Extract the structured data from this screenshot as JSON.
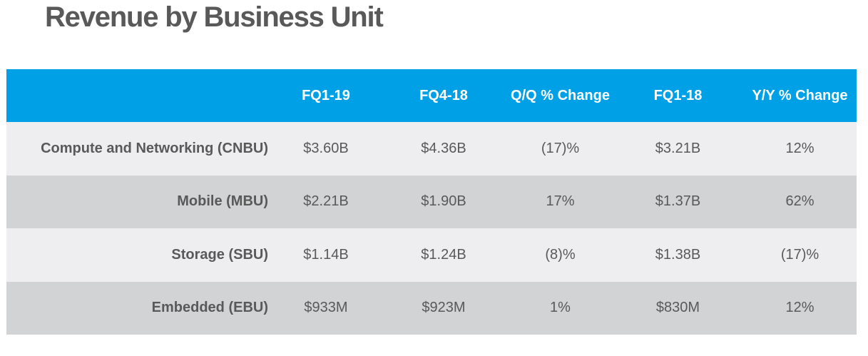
{
  "title": "Revenue by Business Unit",
  "table": {
    "header": [
      "",
      "FQ1-19",
      "FQ4-18",
      "Q/Q % Change",
      "FQ1-18",
      "Y/Y % Change"
    ],
    "rows": [
      {
        "label": "Compute and Networking (CNBU)",
        "fq1_19": "$3.60B",
        "fq4_18": "$4.36B",
        "qq": "(17)%",
        "fq1_18": "$3.21B",
        "yy": "12%"
      },
      {
        "label": "Mobile (MBU)",
        "fq1_19": "$2.21B",
        "fq4_18": "$1.90B",
        "qq": "17%",
        "fq1_18": "$1.37B",
        "yy": "62%"
      },
      {
        "label": "Storage (SBU)",
        "fq1_19": "$1.14B",
        "fq4_18": "$1.24B",
        "qq": "(8)%",
        "fq1_18": "$1.38B",
        "yy": "(17)%"
      },
      {
        "label": "Embedded (EBU)",
        "fq1_19": "$933M",
        "fq4_18": "$923M",
        "qq": "1%",
        "fq1_18": "$830M",
        "yy": "12%"
      }
    ]
  },
  "colors": {
    "header_bg": "#00a0e6",
    "row_light": "#eeeef0",
    "row_dark": "#d2d3d5",
    "text": "#595959"
  }
}
